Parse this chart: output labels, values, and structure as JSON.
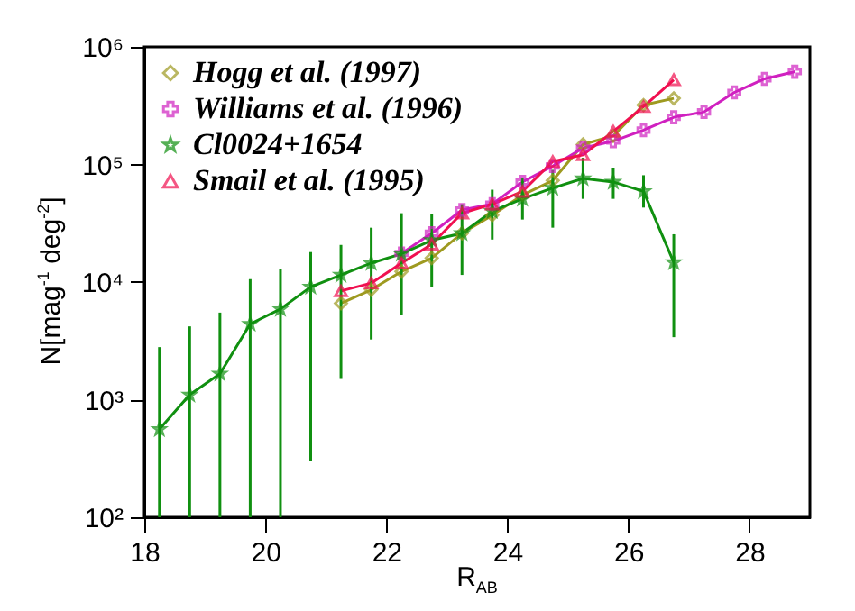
{
  "chart_data": {
    "type": "line",
    "xlabel": "R$_{AB}$",
    "ylabel": "N[mag$^{-1}$ deg$^{-2}$]",
    "log": "y",
    "grid": false,
    "legend": "top left",
    "xlim": [
      18,
      29
    ],
    "xticks": [
      18,
      20,
      22,
      24,
      26,
      28
    ],
    "ylim": [
      100,
      1000000
    ],
    "yticks": [
      {
        "value": 100,
        "label": "10²"
      },
      {
        "value": 1000,
        "label": "10³"
      },
      {
        "value": 10000,
        "label": "10⁴"
      },
      {
        "value": 100000,
        "label": "10⁵"
      },
      {
        "value": 1000000,
        "label": "10⁶"
      }
    ],
    "series": [
      {
        "name": "Hogg et al. (1997)",
        "color": "#9e9a20",
        "marker": "diamond",
        "x": [
          21.25,
          21.75,
          22.25,
          22.75,
          23.25,
          23.75,
          24.25,
          24.75,
          25.25,
          25.75,
          26.25,
          26.75
        ],
        "values": [
          6600,
          8600,
          12300,
          16000,
          26000,
          37000,
          55000,
          73000,
          148000,
          175000,
          320000,
          365000
        ]
      },
      {
        "name": "Williams et al. (1996)",
        "color": "#d020c0",
        "marker": "cross",
        "x": [
          22.25,
          22.75,
          23.25,
          23.75,
          24.25,
          24.75,
          25.25,
          25.75,
          26.25,
          26.75,
          27.25,
          27.75,
          28.25,
          28.75
        ],
        "values": [
          17500,
          26000,
          41000,
          46000,
          71000,
          97000,
          138000,
          158000,
          196000,
          252000,
          280000,
          410000,
          535000,
          615000
        ]
      },
      {
        "name": "Cl0024+1654",
        "color": "#109010",
        "marker": "star",
        "x": [
          18.25,
          18.75,
          19.25,
          19.75,
          20.25,
          20.75,
          21.25,
          21.75,
          22.25,
          22.75,
          23.25,
          23.75,
          24.25,
          24.75,
          25.25,
          25.75,
          26.25,
          26.75
        ],
        "values": [
          560,
          1100,
          1660,
          4400,
          5900,
          9100,
          11500,
          14500,
          17400,
          22700,
          26000,
          40000,
          51000,
          63000,
          76000,
          71000,
          59000,
          14700
        ],
        "errors": [
          [
            100,
            2800
          ],
          [
            100,
            4200
          ],
          [
            100,
            5500
          ],
          [
            100,
            10600
          ],
          [
            100,
            13000
          ],
          [
            300,
            18000
          ],
          [
            1500,
            20700
          ],
          [
            3250,
            29000
          ],
          [
            5300,
            38500
          ],
          [
            9100,
            38000
          ],
          [
            11500,
            46000
          ],
          [
            23000,
            61000
          ],
          [
            34000,
            77000
          ],
          [
            29000,
            90000
          ],
          [
            51000,
            114000
          ],
          [
            51000,
            94000
          ],
          [
            43000,
            81000
          ],
          [
            3400,
            25500
          ]
        ]
      },
      {
        "name": "Smail et al. (1995)",
        "color": "#f01050",
        "marker": "triangle",
        "x": [
          21.25,
          21.75,
          22.25,
          22.75,
          23.25,
          23.75,
          24.25,
          24.75,
          25.25,
          25.75,
          26.25,
          26.75
        ],
        "values": [
          8400,
          9800,
          14500,
          21000,
          38500,
          46000,
          59000,
          106000,
          121000,
          191000,
          310000,
          525000
        ]
      }
    ]
  }
}
